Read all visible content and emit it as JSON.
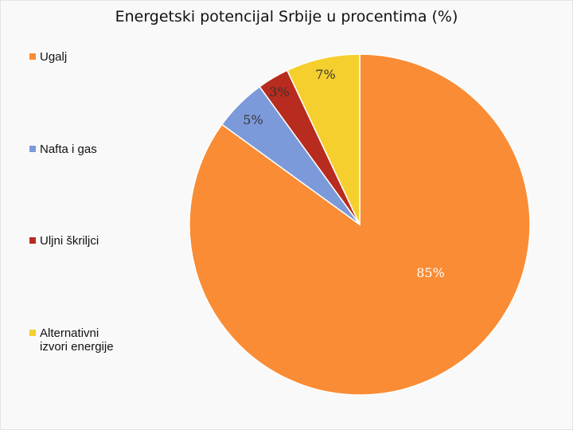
{
  "chart_data": {
    "type": "pie",
    "title": "Energetski potencijal Srbije u procentima (%)",
    "categories": [
      "Ugalj",
      "Nafta i gas",
      "Uljni škriljci",
      "Alternativni izvori energije"
    ],
    "values": [
      85,
      5,
      3,
      7
    ],
    "value_labels": [
      "85%",
      "5%",
      "3%",
      "7%"
    ],
    "colors": [
      "#F98C35",
      "#7C9ADA",
      "#B72C1E",
      "#F5CF2E"
    ],
    "legend_position": "left"
  }
}
